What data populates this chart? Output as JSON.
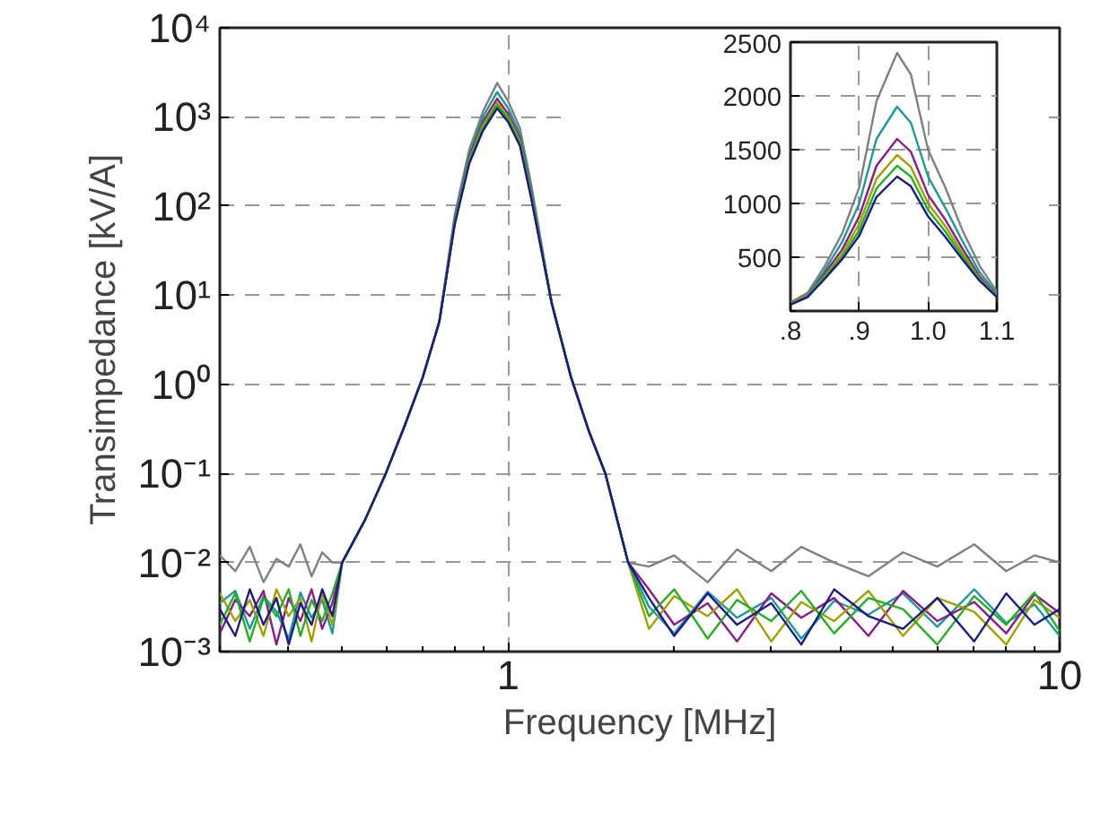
{
  "chart_data": [
    {
      "type": "line",
      "xlabel": "Frequency [MHz]",
      "ylabel": "Transimpedance [kV/A]",
      "log": "xy",
      "grid": true,
      "marker": "none",
      "line_style": "solid",
      "xlim": [
        0.3,
        10
      ],
      "xticks": [
        {
          "value": 0.3,
          "label": null
        },
        {
          "value": 0.4,
          "label": null
        },
        {
          "value": 0.5,
          "label": null
        },
        {
          "value": 0.6,
          "label": null
        },
        {
          "value": 0.7,
          "label": null
        },
        {
          "value": 0.8,
          "label": null
        },
        {
          "value": 0.9,
          "label": null
        },
        1,
        {
          "value": 2,
          "label": null
        },
        {
          "value": 3,
          "label": null
        },
        {
          "value": 4,
          "label": null
        },
        {
          "value": 5,
          "label": null
        },
        {
          "value": 6,
          "label": null
        },
        {
          "value": 7,
          "label": null
        },
        {
          "value": 8,
          "label": null
        },
        {
          "value": 9,
          "label": null
        },
        10
      ],
      "ylim": [
        0.001,
        10000
      ],
      "yticks": [
        {
          "value": 0.001,
          "label": "10⁻³"
        },
        {
          "value": 0.01,
          "label": "10⁻²"
        },
        {
          "value": 0.1,
          "label": "10⁻¹"
        },
        {
          "value": 1,
          "label": "10⁰"
        },
        {
          "value": 10,
          "label": "10¹"
        },
        {
          "value": 100,
          "label": "10²"
        },
        {
          "value": 1000,
          "label": "10³"
        },
        {
          "value": 10000,
          "label": "10⁴"
        }
      ],
      "x": [
        0.3,
        0.32,
        0.34,
        0.36,
        0.38,
        0.4,
        0.42,
        0.44,
        0.46,
        0.48,
        0.5,
        0.55,
        0.6,
        0.65,
        0.7,
        0.75,
        0.8,
        0.85,
        0.9,
        0.955,
        1.0,
        1.05,
        1.1,
        1.2,
        1.3,
        1.4,
        1.5,
        1.65,
        1.8,
        2.0,
        2.3,
        2.6,
        3.0,
        3.4,
        3.9,
        4.5,
        5.2,
        6.0,
        7.0,
        8.0,
        9.0,
        10
      ],
      "series": [
        {
          "color": "#808080",
          "values": [
            0.012,
            0.008,
            0.015,
            0.006,
            0.011,
            0.009,
            0.016,
            0.007,
            0.013,
            0.01,
            0.01,
            0.03,
            0.1,
            0.35,
            1.2,
            5,
            80,
            430,
            1150,
            2400,
            1500,
            750,
            180,
            8,
            1.2,
            0.3,
            0.1,
            0.01,
            0.009,
            0.012,
            0.006,
            0.014,
            0.008,
            0.015,
            0.01,
            0.007,
            0.013,
            0.009,
            0.016,
            0.008,
            0.012,
            0.01
          ]
        },
        {
          "color": "#1a9a9a",
          "values": [
            0.0035,
            0.0048,
            0.0018,
            0.0042,
            0.0028,
            0.0014,
            0.0046,
            0.0024,
            0.0038,
            0.0016,
            0.01,
            0.03,
            0.1,
            0.35,
            1.2,
            5,
            72,
            380,
            1000,
            1900,
            1250,
            650,
            155,
            8,
            1.2,
            0.3,
            0.1,
            0.01,
            0.0032,
            0.0016,
            0.0047,
            0.0024,
            0.004,
            0.0014,
            0.0037,
            0.0026,
            0.0045,
            0.0019,
            0.005,
            0.0021,
            0.0034,
            0.0015
          ]
        },
        {
          "color": "#8b1a8b",
          "values": [
            0.0016,
            0.0038,
            0.0025,
            0.0048,
            0.0012,
            0.004,
            0.0022,
            0.005,
            0.0018,
            0.0035,
            0.01,
            0.03,
            0.1,
            0.35,
            1.2,
            5,
            68,
            350,
            880,
            1600,
            1080,
            580,
            140,
            8,
            1.2,
            0.3,
            0.1,
            0.01,
            0.005,
            0.002,
            0.0035,
            0.0013,
            0.0045,
            0.0024,
            0.004,
            0.0015,
            0.0048,
            0.0022,
            0.0036,
            0.0016,
            0.0044,
            0.0027
          ]
        },
        {
          "color": "#a0a000",
          "values": [
            0.0045,
            0.0022,
            0.0038,
            0.0015,
            0.005,
            0.0025,
            0.004,
            0.0013,
            0.0045,
            0.002,
            0.01,
            0.03,
            0.1,
            0.35,
            1.2,
            5,
            66,
            330,
            810,
            1450,
            1000,
            540,
            135,
            8,
            1.2,
            0.3,
            0.1,
            0.01,
            0.0018,
            0.0042,
            0.0025,
            0.005,
            0.0013,
            0.0036,
            0.0022,
            0.0048,
            0.0015,
            0.004,
            0.0028,
            0.0012,
            0.0038,
            0.0024
          ]
        },
        {
          "color": "#22b022",
          "values": [
            0.002,
            0.0045,
            0.0013,
            0.004,
            0.0025,
            0.005,
            0.0015,
            0.0038,
            0.0022,
            0.0045,
            0.01,
            0.03,
            0.1,
            0.35,
            1.2,
            5,
            64,
            315,
            750,
            1350,
            940,
            510,
            130,
            8,
            1.2,
            0.3,
            0.1,
            0.01,
            0.0025,
            0.005,
            0.0014,
            0.0038,
            0.0022,
            0.0048,
            0.0016,
            0.004,
            0.003,
            0.0012,
            0.0042,
            0.002,
            0.0046,
            0.0017
          ]
        },
        {
          "color": "#1a1a8c",
          "values": [
            0.003,
            0.0015,
            0.005,
            0.002,
            0.004,
            0.0012,
            0.0035,
            0.002,
            0.005,
            0.0025,
            0.01,
            0.03,
            0.1,
            0.35,
            1.2,
            5,
            62,
            300,
            700,
            1250,
            875,
            475,
            125,
            8,
            1.2,
            0.3,
            0.1,
            0.01,
            0.004,
            0.0015,
            0.0045,
            0.002,
            0.0035,
            0.0012,
            0.005,
            0.0025,
            0.0018,
            0.004,
            0.0013,
            0.0045,
            0.002,
            0.003
          ]
        }
      ]
    },
    {
      "type": "line",
      "grid": true,
      "marker": "none",
      "line_style": "solid",
      "xlim": [
        0.8,
        1.1
      ],
      "xticks": [
        {
          "value": 0.8,
          "label": ".8"
        },
        {
          "value": 0.9,
          "label": ".9"
        },
        {
          "value": 1.0,
          "label": "1.0"
        },
        {
          "value": 1.1,
          "label": "1.1"
        }
      ],
      "ylim": [
        0,
        2500
      ],
      "yticks": [
        {
          "value": 0,
          "label": null
        },
        500,
        1000,
        1500,
        2000,
        2500
      ],
      "x": [
        0.8,
        0.825,
        0.85,
        0.875,
        0.9,
        0.925,
        0.955,
        0.975,
        1.0,
        1.025,
        1.05,
        1.075,
        1.1
      ],
      "series": [
        {
          "color": "#808080",
          "values": [
            80,
            170,
            420,
            720,
            1150,
            1950,
            2400,
            2200,
            1500,
            1150,
            750,
            420,
            180
          ]
        },
        {
          "color": "#1a9a9a",
          "values": [
            70,
            150,
            380,
            640,
            1000,
            1600,
            1900,
            1750,
            1250,
            960,
            650,
            360,
            160
          ]
        },
        {
          "color": "#8b1a8b",
          "values": [
            70,
            140,
            350,
            570,
            880,
            1350,
            1600,
            1480,
            1080,
            850,
            580,
            320,
            140
          ]
        },
        {
          "color": "#a0a000",
          "values": [
            70,
            140,
            330,
            530,
            810,
            1230,
            1450,
            1340,
            1000,
            790,
            540,
            300,
            140
          ]
        },
        {
          "color": "#22b022",
          "values": [
            60,
            130,
            320,
            500,
            750,
            1140,
            1350,
            1250,
            940,
            740,
            510,
            290,
            130
          ]
        },
        {
          "color": "#1a1a8c",
          "values": [
            60,
            130,
            300,
            480,
            700,
            1060,
            1250,
            1160,
            880,
            690,
            480,
            280,
            130
          ]
        }
      ]
    }
  ]
}
